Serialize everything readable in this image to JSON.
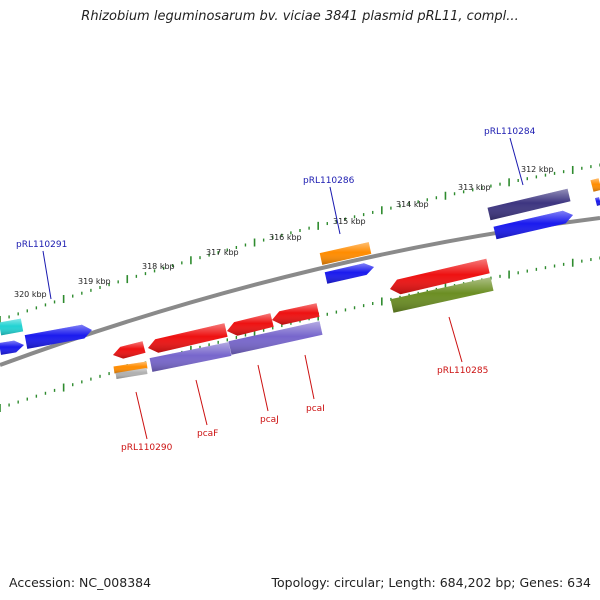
{
  "title": "Rhizobium leguminosarum bv. viciae 3841 plasmid pRL11, compl...",
  "footer": {
    "accession": "Accession: NC_008384",
    "summary": "Topology: circular; Length: 684,202 bp; Genes: 634"
  },
  "colors": {
    "backbone": "#8a8a8a",
    "ticks": "#2e8b2e",
    "forward_label": "#1a1ab0",
    "reverse_label": "#cc1111",
    "cds_red": "#ee1111",
    "cds_blue": "#1a1aee",
    "cds_navy": "#3d3580",
    "cds_purple": "#7766cc",
    "cds_orange": "#ff8c00",
    "cds_olive": "#6b8e23",
    "cds_cyan": "#22d3d3",
    "cds_grey": "#b0b0b0"
  },
  "ticks": {
    "labels": [
      "312 kbp",
      "313 kbp",
      "314 kbp",
      "315 kbp",
      "316 kbp",
      "317 kbp",
      "318 kbp",
      "319 kbp",
      "320 kbp"
    ]
  },
  "gene_labels": {
    "forward": [
      "pRL110291",
      "pRL110286",
      "pRL110284"
    ],
    "reverse": [
      "pRL110290",
      "pcaF",
      "pcaJ",
      "pcaI",
      "pRL110285"
    ]
  }
}
